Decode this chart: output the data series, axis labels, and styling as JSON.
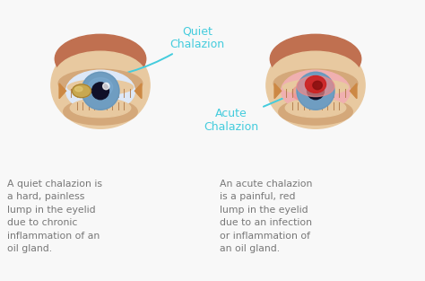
{
  "bg_color": "#f8f8f8",
  "quiet_label": "Quiet\nChalazion",
  "acute_label": "Acute\nChalazion",
  "left_text": "A quiet chalazion is\na hard, painless\nlump in the eyelid\ndue to chronic\ninflammation of an\noil gland.",
  "right_text": "An acute chalazion\nis a painful, red\nlump in the eyelid\ndue to an infection\nor inflammation of\nan oil gland.",
  "skin_color": "#E8C9A0",
  "skin_shadow": "#D4A87A",
  "skin_dark": "#C4976A",
  "brow_color": "#C07050",
  "eye_white": "#DDE8F8",
  "eye_iris": "#7BAAD0",
  "eye_iris_dark": "#5580A0",
  "eye_pupil": "#101028",
  "lid_inner": "#D4956A",
  "gland_color": "#B07848",
  "cyst_color": "#C8A850",
  "cyst_edge": "#A88030",
  "inflamed_red": "#CC2222",
  "inflamed_pink": "#EE8888",
  "inflamed_dark": "#881010",
  "pink_sclera": "#F0B0B0",
  "text_color": "#777777",
  "arrow_color": "#44CCDD",
  "label_color": "#44CCDD",
  "corner_color": "#CC8844"
}
